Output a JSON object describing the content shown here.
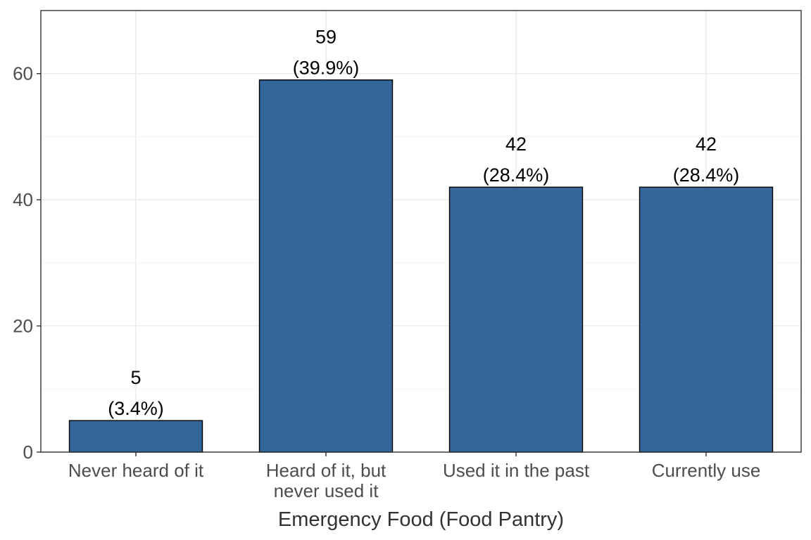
{
  "chart_data": {
    "type": "bar",
    "title": "",
    "xlabel": "Emergency Food (Food Pantry)",
    "ylabel": "",
    "categories": [
      [
        "Never heard of it"
      ],
      [
        "Heard of it, but",
        "never used it"
      ],
      [
        "Used it in the past"
      ],
      [
        "Currently use"
      ]
    ],
    "values": [
      5,
      59,
      42,
      42
    ],
    "value_labels": [
      "5",
      "59",
      "42",
      "42"
    ],
    "percent_labels": [
      "(3.4%)",
      "(39.9%)",
      "(28.4%)",
      "(28.4%)"
    ],
    "ylim": [
      0,
      70
    ],
    "yticks": [
      0,
      20,
      40,
      60
    ],
    "ytick_labels": [
      "0",
      "20",
      "40",
      "60"
    ],
    "grid": true,
    "legend": "none",
    "colors": {
      "bar_fill": "#336699",
      "bar_stroke": "#000000",
      "grid_major": "#ebebeb",
      "grid_minor": "#f5f5f5",
      "panel_border": "#333333",
      "axis_text": "#4d4d4d"
    }
  }
}
